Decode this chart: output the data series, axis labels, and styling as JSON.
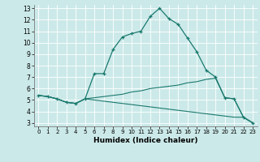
{
  "xlabel": "Humidex (Indice chaleur)",
  "bg_color": "#cce9e9",
  "grid_color": "#ffffff",
  "line_color": "#1a7a6e",
  "xlim": [
    -0.5,
    23.5
  ],
  "ylim": [
    2.7,
    13.3
  ],
  "xticks": [
    0,
    1,
    2,
    3,
    4,
    5,
    6,
    7,
    8,
    9,
    10,
    11,
    12,
    13,
    14,
    15,
    16,
    17,
    18,
    19,
    20,
    21,
    22,
    23
  ],
  "yticks": [
    3,
    4,
    5,
    6,
    7,
    8,
    9,
    10,
    11,
    12,
    13
  ],
  "line1_x": [
    0,
    1,
    2,
    3,
    4,
    5,
    6,
    7,
    8,
    9,
    10,
    11,
    12,
    13,
    14,
    15,
    16,
    17,
    18,
    19,
    20,
    21,
    22,
    23
  ],
  "line1_y": [
    5.4,
    5.3,
    5.1,
    4.8,
    4.7,
    5.1,
    7.3,
    7.3,
    9.4,
    10.5,
    10.8,
    11.0,
    12.3,
    13.0,
    12.1,
    11.6,
    10.4,
    9.2,
    7.6,
    7.0,
    5.2,
    5.1,
    3.5,
    3.0
  ],
  "line2_x": [
    0,
    1,
    2,
    3,
    4,
    5,
    6,
    7,
    8,
    9,
    10,
    11,
    12,
    13,
    14,
    15,
    16,
    17,
    18,
    19,
    20,
    21,
    22,
    23
  ],
  "line2_y": [
    5.4,
    5.3,
    5.1,
    4.8,
    4.7,
    5.1,
    5.2,
    5.3,
    5.4,
    5.5,
    5.7,
    5.8,
    6.0,
    6.1,
    6.2,
    6.3,
    6.5,
    6.6,
    6.8,
    6.9,
    5.2,
    5.1,
    3.5,
    3.0
  ],
  "line3_x": [
    0,
    1,
    2,
    3,
    4,
    5,
    6,
    7,
    8,
    9,
    10,
    11,
    12,
    13,
    14,
    15,
    16,
    17,
    18,
    19,
    20,
    21,
    22,
    23
  ],
  "line3_y": [
    5.4,
    5.3,
    5.1,
    4.8,
    4.7,
    5.1,
    5.0,
    4.9,
    4.8,
    4.7,
    4.6,
    4.5,
    4.4,
    4.3,
    4.2,
    4.1,
    4.0,
    3.9,
    3.8,
    3.7,
    3.6,
    3.5,
    3.5,
    3.0
  ],
  "xlabel_fontsize": 6.5,
  "tick_fontsize_x": 5.0,
  "tick_fontsize_y": 5.5
}
